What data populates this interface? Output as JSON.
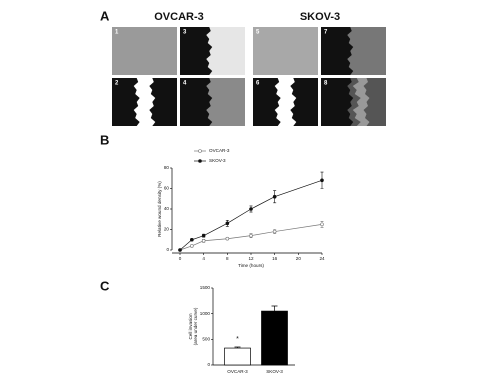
{
  "figure": {
    "panel_labels": [
      "A",
      "B",
      "C"
    ],
    "image_panel": {
      "groups": [
        {
          "title": "OVCAR-3",
          "tiles": [
            "1",
            "3",
            "2",
            "4"
          ]
        },
        {
          "title": "SKOV-3",
          "tiles": [
            "5",
            "7",
            "6",
            "8"
          ]
        }
      ]
    }
  },
  "chart_data": [
    {
      "type": "line",
      "ylabel": "Relative wound density (%)",
      "xlabel": "Time (hours)",
      "x": [
        0,
        2,
        4,
        8,
        12,
        16,
        24
      ],
      "xlim": [
        0,
        24
      ],
      "xticks": [
        0,
        4,
        8,
        12,
        16,
        20,
        24
      ],
      "ylim": [
        0,
        80
      ],
      "yticks": [
        0,
        20,
        40,
        60,
        80
      ],
      "series": [
        {
          "name": "OVCAR-3",
          "color": "#777777",
          "marker": "open",
          "values": [
            0,
            4,
            9,
            11,
            14,
            18,
            25
          ],
          "errors": [
            0.5,
            1,
            1.5,
            1,
            2,
            2,
            3
          ]
        },
        {
          "name": "SKOV-3",
          "color": "#111111",
          "marker": "filled",
          "values": [
            0,
            10,
            14,
            26,
            40,
            52,
            68
          ],
          "errors": [
            0.5,
            1,
            1.5,
            3,
            3,
            6,
            8
          ]
        }
      ]
    },
    {
      "type": "bar",
      "ylabel": [
        "Cell invasion",
        "(area under curve)"
      ],
      "categories": [
        "OVCAR-3",
        "SKOV-3"
      ],
      "values": [
        330,
        1050
      ],
      "errors": [
        20,
        100
      ],
      "colors": [
        "#ffffff",
        "#000000"
      ],
      "annotations": [
        "*",
        null
      ],
      "ylim": [
        0,
        1500
      ],
      "yticks": [
        0,
        500,
        1000,
        1500
      ]
    }
  ]
}
